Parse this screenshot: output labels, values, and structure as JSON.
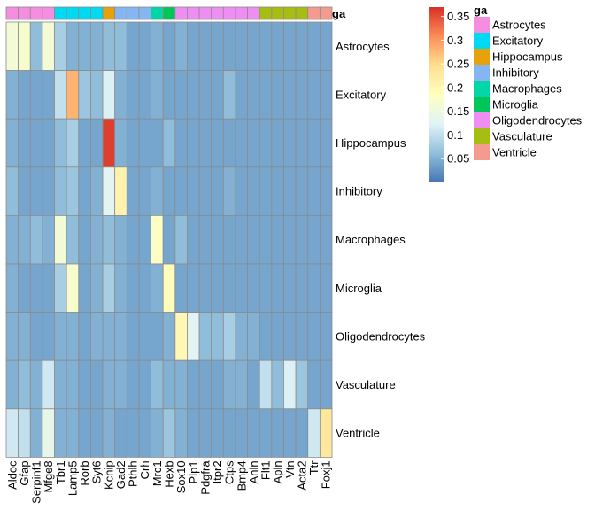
{
  "chart_data": {
    "type": "heatmap",
    "title": "",
    "genes": [
      "Aldoc",
      "Gfap",
      "Serpinf1",
      "Mfge8",
      "Tbr1",
      "Lamp5",
      "Rorb",
      "Syt6",
      "Kcnip",
      "Gad2",
      "Pthlh",
      "Crh",
      "Mrc1",
      "Hexb",
      "Sox10",
      "Plp1",
      "Pdgfra",
      "Itpr2",
      "Ctps",
      "Bmp4",
      "Anln",
      "Flt1",
      "Apln",
      "Vtn",
      "Acta2",
      "Ttr",
      "Foxj1"
    ],
    "cell_types": [
      "Astrocytes",
      "Excitatory",
      "Hippocampus",
      "Inhibitory",
      "Macrophages",
      "Microglia",
      "Oligodendrocytes",
      "Vasculature",
      "Ventricle"
    ],
    "gene_annotation_label": "ga",
    "gene_groups": [
      "Astrocytes",
      "Astrocytes",
      "Astrocytes",
      "Astrocytes",
      "Excitatory",
      "Excitatory",
      "Excitatory",
      "Excitatory",
      "Hippocampus",
      "Inhibitory",
      "Inhibitory",
      "Inhibitory",
      "Macrophages",
      "Microglia",
      "Oligodendrocytes",
      "Oligodendrocytes",
      "Oligodendrocytes",
      "Oligodendrocytes",
      "Oligodendrocytes",
      "Oligodendrocytes",
      "Oligodendrocytes",
      "Vasculature",
      "Vasculature",
      "Vasculature",
      "Vasculature",
      "Ventricle",
      "Ventricle"
    ],
    "values": [
      [
        0.16,
        0.17,
        0.06,
        0.16,
        0.08,
        0.05,
        0.05,
        0.05,
        0.06,
        0.06,
        0.04,
        0.04,
        0.05,
        0.04,
        0.05,
        0.04,
        0.04,
        0.04,
        0.04,
        0.04,
        0.04,
        0.04,
        0.04,
        0.04,
        0.04,
        0.04,
        0.04
      ],
      [
        0.05,
        0.04,
        0.04,
        0.04,
        0.1,
        0.28,
        0.07,
        0.06,
        0.12,
        0.05,
        0.04,
        0.04,
        0.05,
        0.04,
        0.04,
        0.04,
        0.04,
        0.04,
        0.06,
        0.04,
        0.04,
        0.04,
        0.04,
        0.04,
        0.04,
        0.04,
        0.04
      ],
      [
        0.05,
        0.04,
        0.04,
        0.04,
        0.06,
        0.08,
        0.04,
        0.04,
        0.36,
        0.05,
        0.04,
        0.04,
        0.04,
        0.06,
        0.04,
        0.04,
        0.04,
        0.04,
        0.04,
        0.04,
        0.04,
        0.04,
        0.04,
        0.04,
        0.04,
        0.04,
        0.04
      ],
      [
        0.06,
        0.04,
        0.04,
        0.04,
        0.06,
        0.07,
        0.04,
        0.05,
        0.13,
        0.21,
        0.04,
        0.04,
        0.05,
        0.04,
        0.04,
        0.04,
        0.04,
        0.04,
        0.05,
        0.04,
        0.04,
        0.04,
        0.04,
        0.04,
        0.04,
        0.04,
        0.04
      ],
      [
        0.05,
        0.05,
        0.06,
        0.05,
        0.16,
        0.06,
        0.04,
        0.05,
        0.06,
        0.05,
        0.04,
        0.04,
        0.18,
        0.04,
        0.06,
        0.04,
        0.04,
        0.04,
        0.04,
        0.04,
        0.04,
        0.04,
        0.04,
        0.04,
        0.04,
        0.04,
        0.04
      ],
      [
        0.05,
        0.04,
        0.04,
        0.04,
        0.08,
        0.17,
        0.04,
        0.05,
        0.08,
        0.05,
        0.04,
        0.04,
        0.05,
        0.19,
        0.04,
        0.04,
        0.04,
        0.04,
        0.04,
        0.04,
        0.04,
        0.04,
        0.04,
        0.04,
        0.04,
        0.04,
        0.04
      ],
      [
        0.05,
        0.05,
        0.04,
        0.04,
        0.05,
        0.05,
        0.04,
        0.05,
        0.05,
        0.05,
        0.04,
        0.04,
        0.04,
        0.05,
        0.2,
        0.13,
        0.06,
        0.06,
        0.08,
        0.05,
        0.05,
        0.04,
        0.04,
        0.04,
        0.04,
        0.04,
        0.04
      ],
      [
        0.05,
        0.06,
        0.05,
        0.11,
        0.05,
        0.05,
        0.04,
        0.04,
        0.05,
        0.05,
        0.04,
        0.04,
        0.06,
        0.05,
        0.05,
        0.04,
        0.04,
        0.04,
        0.05,
        0.05,
        0.04,
        0.1,
        0.06,
        0.12,
        0.07,
        0.04,
        0.04
      ],
      [
        0.11,
        0.1,
        0.05,
        0.14,
        0.05,
        0.05,
        0.04,
        0.04,
        0.05,
        0.04,
        0.04,
        0.04,
        0.05,
        0.07,
        0.05,
        0.04,
        0.04,
        0.04,
        0.04,
        0.04,
        0.04,
        0.04,
        0.04,
        0.04,
        0.04,
        0.11,
        0.23
      ]
    ],
    "color_scale": {
      "range": [
        0.0,
        0.37
      ],
      "ticks": [
        "0.05",
        "0.1",
        "0.15",
        "0.2",
        "0.25",
        "0.3",
        "0.35"
      ],
      "tick_values": [
        0.05,
        0.1,
        0.15,
        0.2,
        0.25,
        0.3,
        0.35
      ],
      "stops": [
        "#4575b4",
        "#91bfdb",
        "#e0f3f8",
        "#ffffbf",
        "#fee090",
        "#fc8d59",
        "#d73027"
      ]
    },
    "legend": {
      "title": "ga",
      "entries": [
        {
          "label": "Astrocytes",
          "color": "#f58ee0"
        },
        {
          "label": "Excitatory",
          "color": "#00d9f2"
        },
        {
          "label": "Hippocampus",
          "color": "#e6a20a"
        },
        {
          "label": "Inhibitory",
          "color": "#86b6f2"
        },
        {
          "label": "Macrophages",
          "color": "#00d6a6"
        },
        {
          "label": "Microglia",
          "color": "#00c65a"
        },
        {
          "label": "Oligodendrocytes",
          "color": "#ef8ef2"
        },
        {
          "label": "Vasculature",
          "color": "#a8bd12"
        },
        {
          "label": "Ventricle",
          "color": "#f59a8e"
        }
      ]
    }
  }
}
